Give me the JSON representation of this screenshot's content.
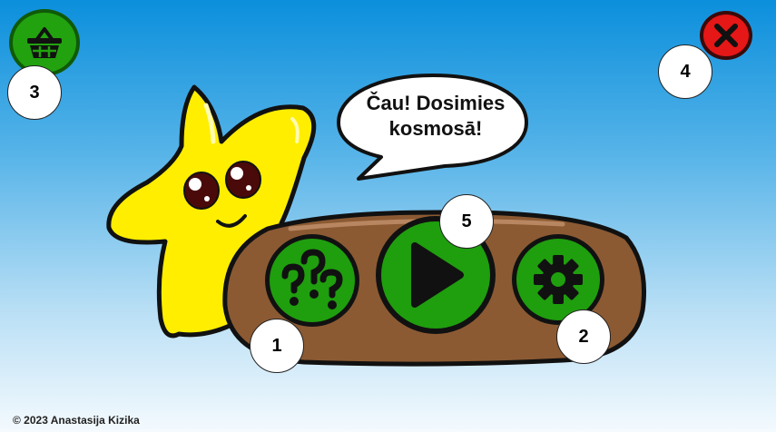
{
  "speech_bubble": {
    "text_line1": "Čau! Dosimies",
    "text_line2": "kosmosā!"
  },
  "callouts": {
    "one": "1",
    "two": "2",
    "three": "3",
    "four": "4",
    "five": "5"
  },
  "footer": {
    "copyright": "© 2023 Anastasija Kizika"
  },
  "icons": {
    "basket": "basket-icon",
    "close": "close-icon",
    "help": "question-marks-icon",
    "play": "play-icon",
    "settings": "gear-icon"
  },
  "colors": {
    "sky_top": "#0b8fdc",
    "button_green": "#1f9e0e",
    "close_red": "#e51717",
    "panel_brown": "#8b5a33",
    "star_yellow": "#ffee00"
  }
}
